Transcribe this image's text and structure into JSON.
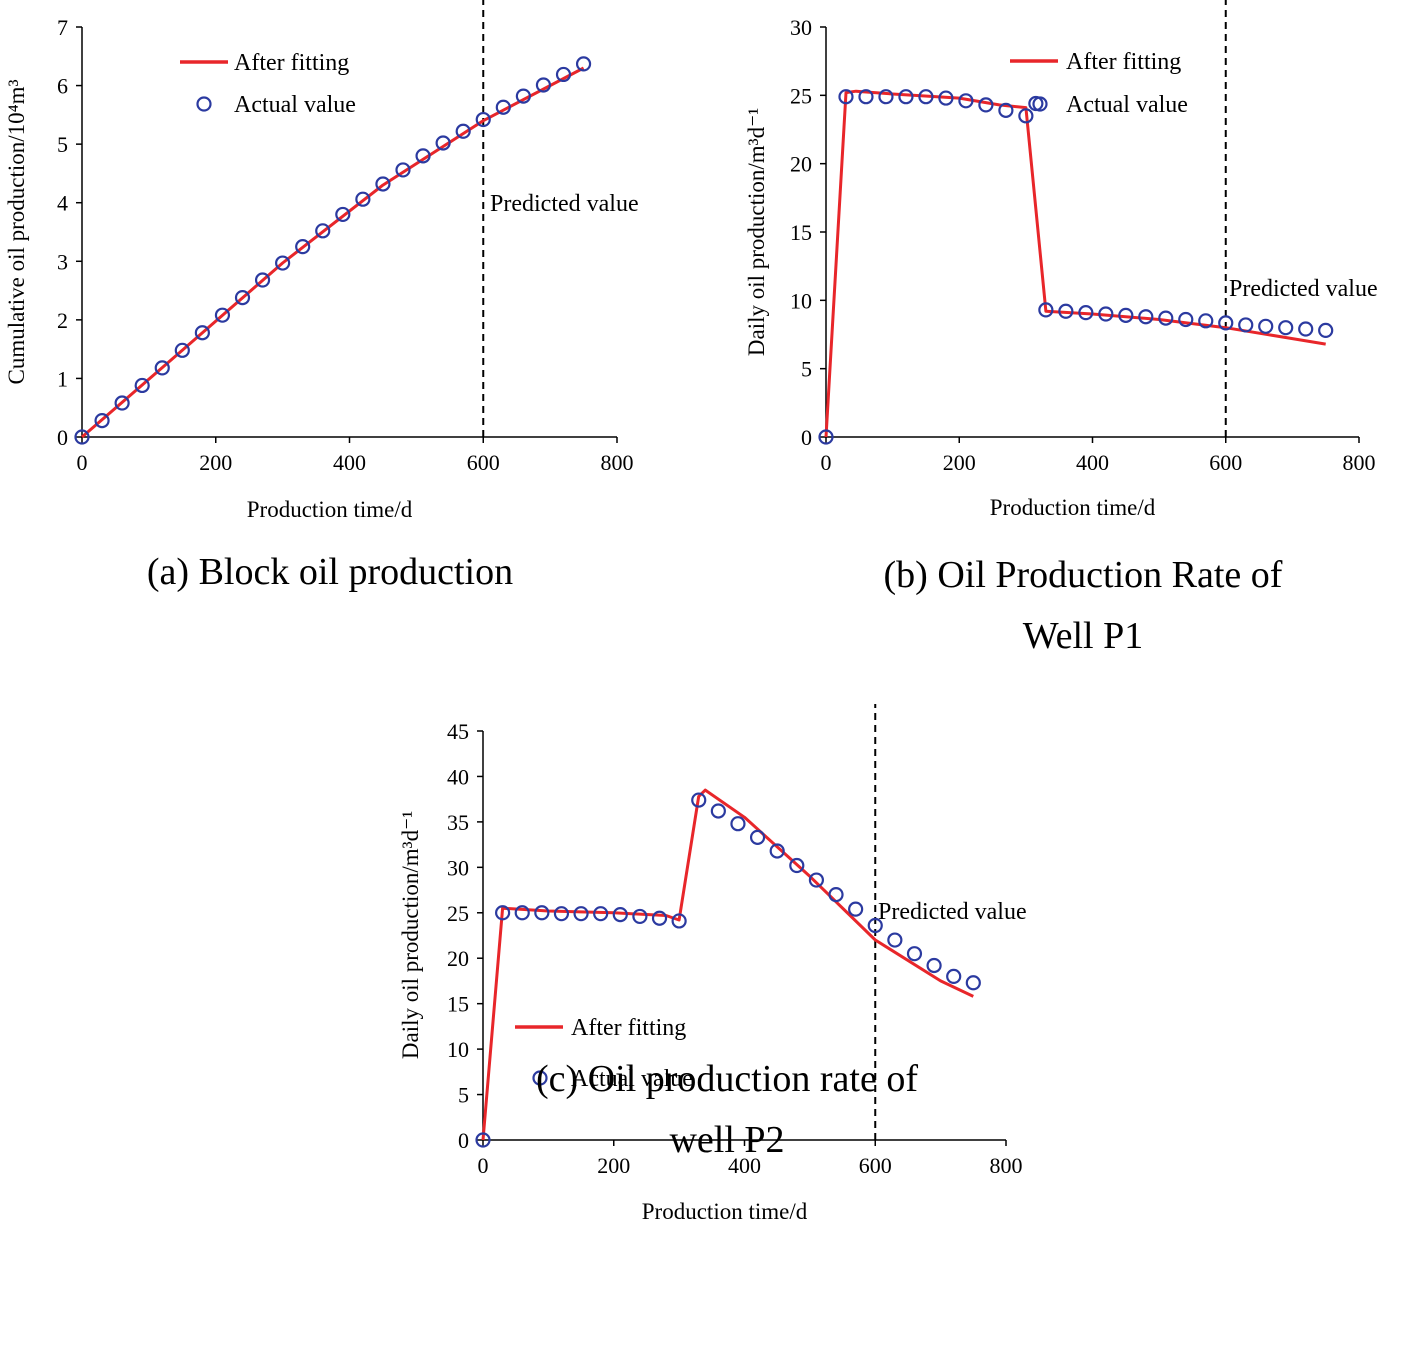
{
  "chart_data": [
    {
      "type": "line",
      "panel": "a",
      "caption_lines": [
        "(a) Block oil production"
      ],
      "xlabel": "Production time/d",
      "ylabel": "Cumulative oil production/10⁴m³",
      "xlim": [
        0,
        800
      ],
      "ylim": [
        0,
        7
      ],
      "xticks": [
        0,
        200,
        400,
        600,
        800
      ],
      "yticks": [
        0,
        1,
        2,
        3,
        4,
        5,
        6,
        7
      ],
      "prediction_x": 600,
      "prediction_label": "Predicted value",
      "legend_position": "top-left",
      "series": [
        {
          "name": "After fitting",
          "kind": "line",
          "color": "#e8262a",
          "x": [
            0,
            150,
            300,
            450,
            600,
            750
          ],
          "y": [
            0,
            1.48,
            2.97,
            4.3,
            5.4,
            6.3
          ]
        },
        {
          "name": "Actual value",
          "kind": "marker",
          "color": "#2b3aa0",
          "x": [
            0,
            30,
            60,
            90,
            120,
            150,
            180,
            210,
            240,
            270,
            300,
            330,
            360,
            390,
            420,
            450,
            480,
            510,
            540,
            570,
            600,
            630,
            660,
            690,
            720,
            750
          ],
          "y": [
            0,
            0.28,
            0.58,
            0.88,
            1.18,
            1.48,
            1.78,
            2.08,
            2.38,
            2.68,
            2.97,
            3.25,
            3.52,
            3.8,
            4.06,
            4.32,
            4.56,
            4.8,
            5.02,
            5.22,
            5.42,
            5.63,
            5.82,
            6.01,
            6.19,
            6.37
          ]
        }
      ]
    },
    {
      "type": "line",
      "panel": "b",
      "caption_lines": [
        "(b) Oil Production Rate of",
        "Well P1"
      ],
      "xlabel": "Production time/d",
      "ylabel": "Daily oil production/m³d⁻¹",
      "xlim": [
        0,
        800
      ],
      "ylim": [
        0,
        30
      ],
      "xticks": [
        0,
        200,
        400,
        600,
        800
      ],
      "yticks": [
        0,
        5,
        10,
        15,
        20,
        25,
        30
      ],
      "prediction_x": 600,
      "prediction_label": "Predicted value",
      "legend_position": "top-right",
      "series": [
        {
          "name": "After fitting",
          "kind": "line",
          "color": "#e8262a",
          "x": [
            0,
            30,
            45,
            100,
            200,
            260,
            300,
            330,
            400,
            500,
            600,
            700,
            750
          ],
          "y": [
            0,
            25.2,
            25.3,
            25.1,
            24.8,
            24.3,
            24.1,
            9.2,
            9.0,
            8.6,
            8.0,
            7.2,
            6.8
          ]
        },
        {
          "name": "Actual value",
          "kind": "marker",
          "color": "#2b3aa0",
          "x": [
            0,
            30,
            60,
            90,
            120,
            150,
            180,
            210,
            240,
            270,
            300,
            315,
            330,
            360,
            390,
            420,
            450,
            480,
            510,
            540,
            570,
            600,
            630,
            660,
            690,
            720,
            750
          ],
          "y": [
            0,
            24.9,
            24.9,
            24.9,
            24.9,
            24.9,
            24.8,
            24.6,
            24.3,
            23.9,
            23.5,
            24.4,
            9.3,
            9.2,
            9.1,
            9.0,
            8.9,
            8.8,
            8.7,
            8.6,
            8.5,
            8.35,
            8.2,
            8.1,
            8.0,
            7.9,
            7.8
          ]
        }
      ]
    },
    {
      "type": "line",
      "panel": "c",
      "caption_lines": [
        "(c) Oil production rate of",
        "well P2"
      ],
      "xlabel": "Production time/d",
      "ylabel": "Daily oil production/m³d⁻¹",
      "xlim": [
        0,
        800
      ],
      "ylim": [
        0,
        45
      ],
      "xticks": [
        0,
        200,
        400,
        600,
        800
      ],
      "yticks": [
        0,
        5,
        10,
        15,
        20,
        25,
        30,
        35,
        40,
        45
      ],
      "prediction_x": 600,
      "prediction_label": "Predicted value",
      "legend_position": "bottom-left",
      "series": [
        {
          "name": "After fitting",
          "kind": "line",
          "color": "#e8262a",
          "x": [
            0,
            30,
            100,
            200,
            280,
            300,
            330,
            340,
            400,
            500,
            600,
            700,
            750
          ],
          "y": [
            0,
            25.5,
            25.2,
            25.0,
            24.7,
            24.2,
            37.8,
            38.5,
            35.5,
            29.0,
            22.0,
            17.5,
            15.8
          ]
        },
        {
          "name": "Actual value",
          "kind": "marker",
          "color": "#2b3aa0",
          "x": [
            0,
            30,
            60,
            90,
            120,
            150,
            180,
            210,
            240,
            270,
            300,
            330,
            360,
            390,
            420,
            450,
            480,
            510,
            540,
            570,
            600,
            630,
            660,
            690,
            720,
            750
          ],
          "y": [
            0,
            25.0,
            25.0,
            25.0,
            24.9,
            24.9,
            24.9,
            24.8,
            24.6,
            24.4,
            24.1,
            37.4,
            36.2,
            34.8,
            33.3,
            31.8,
            30.2,
            28.6,
            27.0,
            25.4,
            23.6,
            22.0,
            20.5,
            19.2,
            18.0,
            17.3
          ]
        }
      ]
    }
  ]
}
